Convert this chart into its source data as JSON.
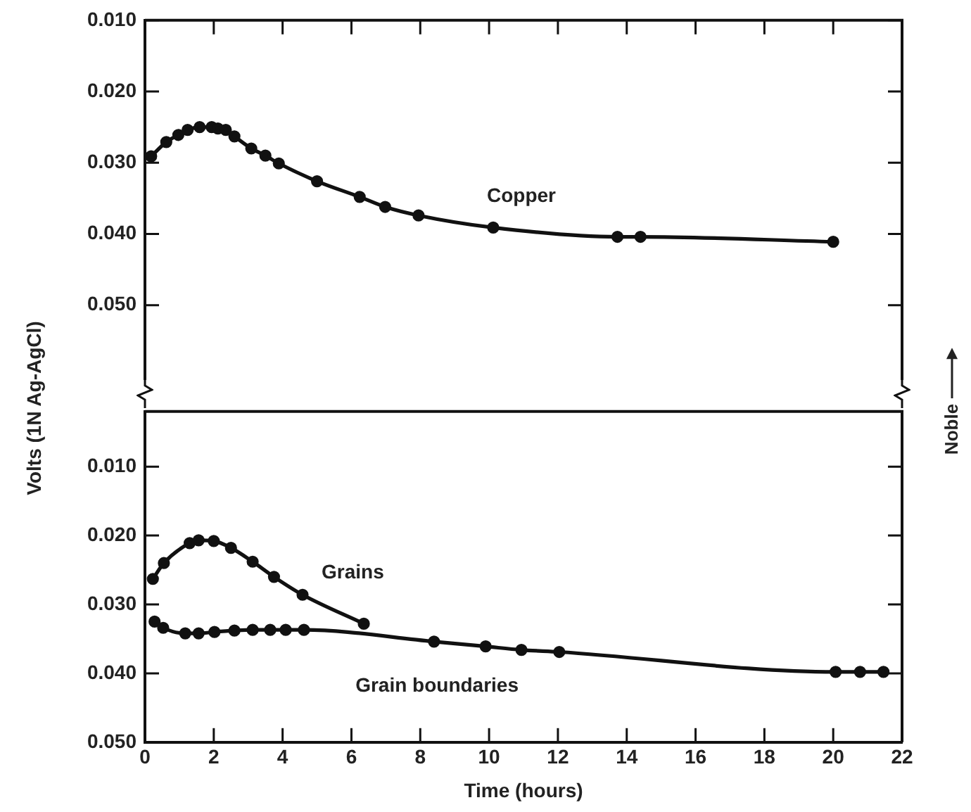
{
  "chart_data": [
    {
      "type": "line",
      "ylabel": "Volts (1N Ag-AgCl)",
      "xlim": [
        0,
        22
      ],
      "xticks": [
        0,
        2,
        4,
        6,
        8,
        10,
        12,
        14,
        16,
        18,
        20,
        22
      ],
      "ylim": [
        0.062,
        0.01
      ],
      "yticks": [
        {
          "value": 0.01,
          "label": "0.010"
        },
        {
          "value": 0.02,
          "label": "0.020"
        },
        {
          "value": 0.03,
          "label": "0.030"
        },
        {
          "value": 0.04,
          "label": "0.040"
        },
        {
          "value": 0.05,
          "label": "0.050"
        }
      ],
      "tick_labels": "y",
      "marker": "circle",
      "line_style": "solid",
      "grid": false,
      "legend": false,
      "series": [
        {
          "name": "Copper",
          "color": "#111111",
          "x": [
            0.18,
            0.62,
            0.97,
            1.24,
            1.59,
            1.94,
            2.12,
            2.35,
            2.6,
            3.09,
            3.5,
            3.89,
            5.0,
            6.24,
            6.98,
            7.95,
            10.12,
            13.73,
            14.4,
            20.0
          ],
          "values": [
            0.0291,
            0.0271,
            0.0261,
            0.0254,
            0.025,
            0.025,
            0.0252,
            0.0254,
            0.0263,
            0.028,
            0.029,
            0.0301,
            0.0326,
            0.0348,
            0.0362,
            0.0374,
            0.0391,
            0.0404,
            0.0404,
            0.0411
          ]
        }
      ]
    },
    {
      "type": "line",
      "xlabel": "Time (hours)",
      "xlim": [
        0,
        22
      ],
      "xticks": [
        0,
        2,
        4,
        6,
        8,
        10,
        12,
        14,
        16,
        18,
        20,
        22
      ],
      "ylim": [
        0.05,
        0.002
      ],
      "yticks": [
        {
          "value": 0.01,
          "label": "0.010"
        },
        {
          "value": 0.02,
          "label": "0.020"
        },
        {
          "value": 0.03,
          "label": "0.030"
        },
        {
          "value": 0.04,
          "label": "0.040"
        },
        {
          "value": 0.05,
          "label": "0.050"
        }
      ],
      "marker": "circle",
      "line_style": "solid",
      "grid": false,
      "legend": false,
      "series": [
        {
          "name": "Grains",
          "color": "#111111",
          "x": [
            0.23,
            0.55,
            1.3,
            1.56,
            2.0,
            2.5,
            3.13,
            3.75,
            4.58,
            6.36
          ],
          "values": [
            0.0263,
            0.024,
            0.0211,
            0.0207,
            0.0208,
            0.0218,
            0.0238,
            0.026,
            0.0286,
            0.0328
          ]
        },
        {
          "name": "Grain boundaries",
          "color": "#111111",
          "x": [
            0.28,
            0.53,
            1.17,
            1.56,
            2.02,
            2.6,
            3.13,
            3.64,
            4.09,
            4.62,
            8.4,
            9.9,
            10.94,
            12.04,
            20.07,
            20.78,
            21.46
          ],
          "values": [
            0.0325,
            0.0334,
            0.0342,
            0.0342,
            0.034,
            0.0338,
            0.0337,
            0.0337,
            0.0337,
            0.0337,
            0.0354,
            0.0361,
            0.0366,
            0.0369,
            0.0398,
            0.0398,
            0.0398
          ]
        }
      ],
      "annotations": [
        "Noble"
      ]
    }
  ]
}
